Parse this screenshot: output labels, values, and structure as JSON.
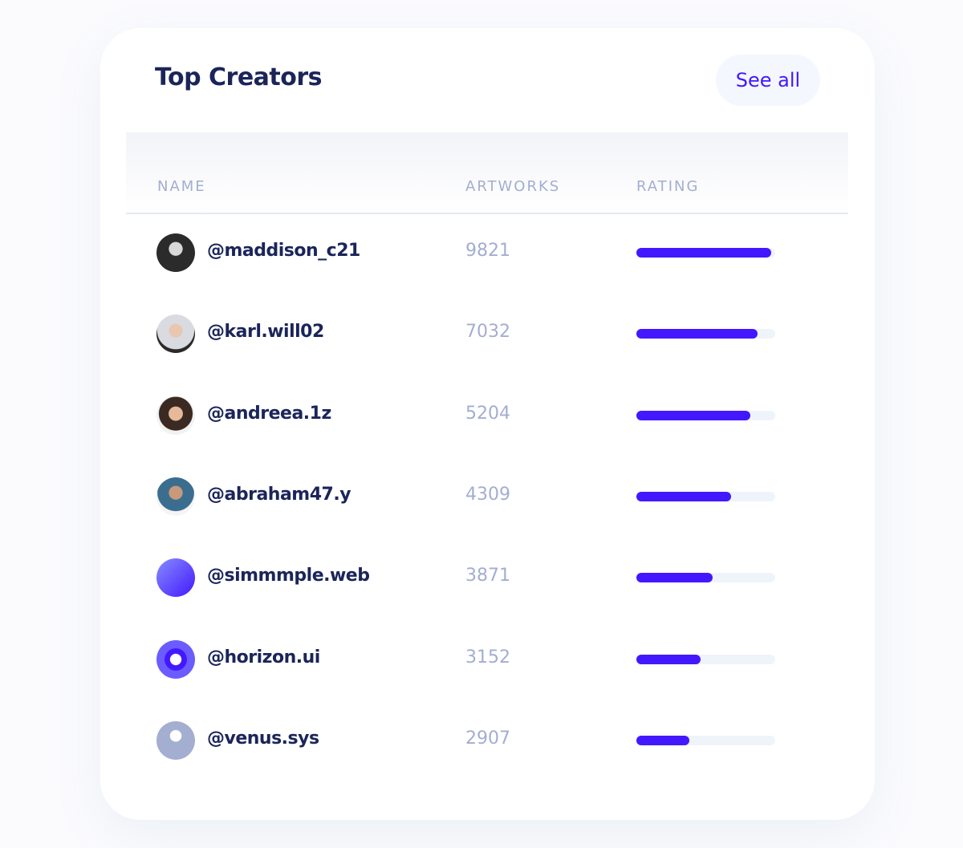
{
  "header": {
    "title": "Top Creators",
    "button": "See all"
  },
  "table": {
    "columns": [
      "NAME",
      "ARTWORKS",
      "RATING"
    ],
    "rows": [
      {
        "name": "@maddison_c21",
        "artworks": 9821,
        "rating": 97
      },
      {
        "name": "@karl.will02",
        "artworks": 7032,
        "rating": 87
      },
      {
        "name": "@andreea.1z",
        "artworks": 5204,
        "rating": 82
      },
      {
        "name": "@abraham47.y",
        "artworks": 4309,
        "rating": 68
      },
      {
        "name": "@simmmple.web",
        "artworks": 3871,
        "rating": 55
      },
      {
        "name": "@horizon.ui",
        "artworks": 3152,
        "rating": 46
      },
      {
        "name": "@venus.sys",
        "artworks": 2907,
        "rating": 38
      }
    ]
  }
}
